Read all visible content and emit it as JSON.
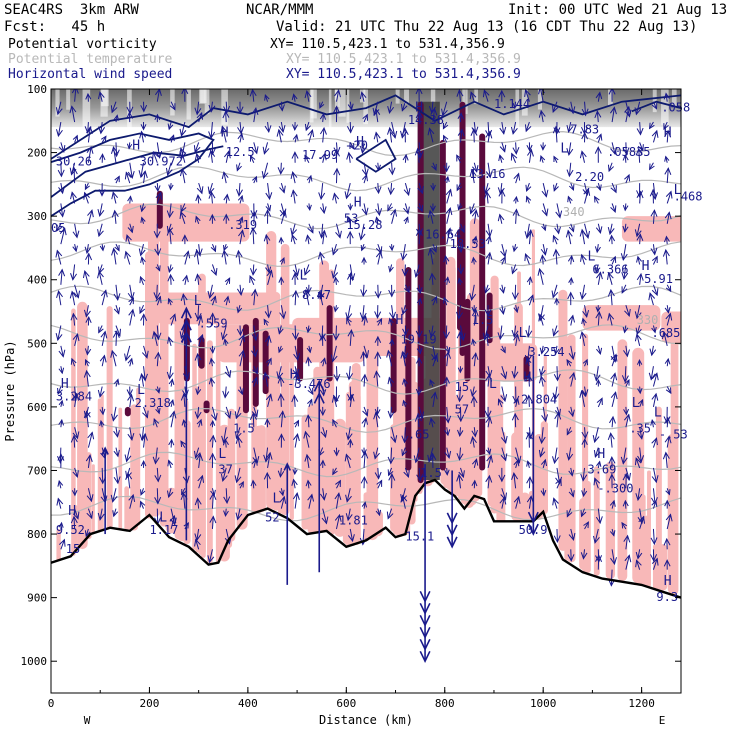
{
  "header": {
    "model": "SEAC4RS  3km ARW",
    "org": "NCAR/MMM",
    "init": "Init: 00 UTC Wed 21 Aug 13",
    "fcst": "Fcst:   45 h",
    "valid": "Valid: 21 UTC Thu 22 Aug 13 (16 CDT Thu 22 Aug 13)"
  },
  "legend": [
    {
      "label": "Potential vorticity",
      "xy": "XY= 110.5,423.1 to 531.4,356.9",
      "color": "#000000"
    },
    {
      "label": "Potential temperature",
      "xy": "XY= 110.5,423.1 to 531.4,356.9",
      "color": "#b8b8b8"
    },
    {
      "label": "Horizontal wind speed",
      "xy": "XY= 110.5,423.1 to 531.4,356.9",
      "color": "#1a1a8c"
    }
  ],
  "chart_data": {
    "type": "cross-section",
    "xlabel": "Distance (km)",
    "ylabel": "Pressure (hPa)",
    "xlim": [
      0,
      1280
    ],
    "ylim": [
      1050,
      100
    ],
    "x_ticks": [
      "0",
      "200",
      "400",
      "600",
      "800",
      "1000",
      "1200"
    ],
    "y_ticks": [
      "100",
      "200",
      "300",
      "400",
      "500",
      "600",
      "700",
      "800",
      "900",
      "1000"
    ],
    "endpoints": {
      "left": "W",
      "right": "E"
    },
    "colors": {
      "pv_positive": "#f8b8b8",
      "pv_high": "#5a0a3c",
      "terrain": "#000000",
      "theta": "#b8b8b8",
      "wind": "#1a1a8c"
    },
    "terrain": {
      "x": [
        0,
        40,
        80,
        120,
        160,
        200,
        240,
        280,
        320,
        340,
        360,
        400,
        440,
        480,
        520,
        560,
        600,
        640,
        680,
        700,
        720,
        740,
        760,
        780,
        800,
        820,
        840,
        860,
        880,
        900,
        940,
        980,
        1000,
        1020,
        1040,
        1080,
        1120,
        1160,
        1200,
        1240,
        1280
      ],
      "p": [
        845,
        835,
        800,
        790,
        795,
        770,
        805,
        820,
        848,
        845,
        810,
        770,
        760,
        775,
        800,
        795,
        820,
        810,
        790,
        805,
        800,
        740,
        720,
        715,
        730,
        740,
        760,
        740,
        745,
        780,
        780,
        780,
        765,
        810,
        840,
        860,
        870,
        875,
        880,
        890,
        900
      ]
    },
    "theta_labels": [
      {
        "x": 1040,
        "p": 300,
        "text": "340"
      },
      {
        "x": 1190,
        "p": 470,
        "text": "330"
      }
    ],
    "centers": [
      {
        "x": 165,
        "p": 195,
        "text": "H"
      },
      {
        "x": 345,
        "p": 175,
        "text": "H"
      },
      {
        "x": 620,
        "p": 190,
        "text": "H"
      },
      {
        "x": 740,
        "p": 135,
        "text": "H"
      },
      {
        "x": 1035,
        "p": 200,
        "text": "L"
      },
      {
        "x": 1245,
        "p": 175,
        "text": "H"
      },
      {
        "x": 615,
        "p": 285,
        "text": "H"
      },
      {
        "x": 1265,
        "p": 265,
        "text": "L"
      },
      {
        "x": 1090,
        "p": 370,
        "text": "L"
      },
      {
        "x": 1200,
        "p": 385,
        "text": "H"
      },
      {
        "x": 505,
        "p": 400,
        "text": "L"
      },
      {
        "x": 290,
        "p": 440,
        "text": "L"
      },
      {
        "x": 700,
        "p": 470,
        "text": "H"
      },
      {
        "x": 950,
        "p": 490,
        "text": "L"
      },
      {
        "x": 20,
        "p": 570,
        "text": "H"
      },
      {
        "x": 175,
        "p": 580,
        "text": "L"
      },
      {
        "x": 485,
        "p": 555,
        "text": "H"
      },
      {
        "x": 890,
        "p": 570,
        "text": "L"
      },
      {
        "x": 960,
        "p": 560,
        "text": "H"
      },
      {
        "x": 340,
        "p": 680,
        "text": "L"
      },
      {
        "x": 1180,
        "p": 600,
        "text": "L"
      },
      {
        "x": 1225,
        "p": 615,
        "text": "L"
      },
      {
        "x": 1110,
        "p": 680,
        "text": "H"
      },
      {
        "x": 35,
        "p": 770,
        "text": "H"
      },
      {
        "x": 220,
        "p": 780,
        "text": "L"
      },
      {
        "x": 450,
        "p": 750,
        "text": "L"
      },
      {
        "x": 1245,
        "p": 880,
        "text": "H"
      }
    ],
    "values": [
      {
        "x": 10,
        "p": 220,
        "text": "30.26"
      },
      {
        "x": 180,
        "p": 220,
        "text": "30.972"
      },
      {
        "x": 355,
        "p": 205,
        "text": "12.5"
      },
      {
        "x": 510,
        "p": 210,
        "text": "17.99"
      },
      {
        "x": 600,
        "p": 195,
        "text": "+20"
      },
      {
        "x": 725,
        "p": 155,
        "text": "14.38"
      },
      {
        "x": 900,
        "p": 130,
        "text": "1.144"
      },
      {
        "x": 1055,
        "p": 170,
        "text": "7.83"
      },
      {
        "x": 1240,
        "p": 135,
        "text": ".058"
      },
      {
        "x": 1130,
        "p": 205,
        "text": ".05835"
      },
      {
        "x": 1065,
        "p": 245,
        "text": "2.20"
      },
      {
        "x": 1265,
        "p": 275,
        "text": ".468"
      },
      {
        "x": 850,
        "p": 240,
        "text": "13.16"
      },
      {
        "x": 595,
        "p": 310,
        "text": "53"
      },
      {
        "x": 600,
        "p": 320,
        "text": "15.28"
      },
      {
        "x": 0,
        "p": 325,
        "text": "05"
      },
      {
        "x": 360,
        "p": 320,
        "text": ".319"
      },
      {
        "x": 760,
        "p": 335,
        "text": "16.64"
      },
      {
        "x": 810,
        "p": 350,
        "text": "18.53"
      },
      {
        "x": 1100,
        "p": 390,
        "text": "6.366"
      },
      {
        "x": 1205,
        "p": 405,
        "text": "5.91"
      },
      {
        "x": 510,
        "p": 430,
        "text": "8.47"
      },
      {
        "x": 300,
        "p": 475,
        "text": ".559"
      },
      {
        "x": 855,
        "p": 470,
        "text": "1.5"
      },
      {
        "x": 1220,
        "p": 490,
        "text": ".685"
      },
      {
        "x": 710,
        "p": 500,
        "text": "19.19"
      },
      {
        "x": 970,
        "p": 520,
        "text": "3.254"
      },
      {
        "x": 10,
        "p": 590,
        "text": "3.284"
      },
      {
        "x": 170,
        "p": 600,
        "text": "2.318"
      },
      {
        "x": 480,
        "p": 570,
        "text": "-3.476"
      },
      {
        "x": 820,
        "p": 575,
        "text": "15"
      },
      {
        "x": 820,
        "p": 610,
        "text": "57"
      },
      {
        "x": 955,
        "p": 595,
        "text": "2.804"
      },
      {
        "x": 370,
        "p": 640,
        "text": "1.5"
      },
      {
        "x": 725,
        "p": 650,
        "text": ".65"
      },
      {
        "x": 1175,
        "p": 640,
        "text": ".35"
      },
      {
        "x": 1235,
        "p": 650,
        "text": "-.53"
      },
      {
        "x": 340,
        "p": 705,
        "text": "37"
      },
      {
        "x": 1090,
        "p": 705,
        "text": "3.69"
      },
      {
        "x": 1110,
        "p": 735,
        "text": "-.300"
      },
      {
        "x": 750,
        "p": 710,
        "text": "1.5"
      },
      {
        "x": 435,
        "p": 780,
        "text": "52"
      },
      {
        "x": 585,
        "p": 785,
        "text": "1.81"
      },
      {
        "x": 200,
        "p": 800,
        "text": "1.17"
      },
      {
        "x": 10,
        "p": 800,
        "text": "9.52"
      },
      {
        "x": 30,
        "p": 830,
        "text": "15"
      },
      {
        "x": 720,
        "p": 810,
        "text": "15.1"
      },
      {
        "x": 950,
        "p": 800,
        "text": "50.9"
      },
      {
        "x": 1230,
        "p": 905,
        "text": "9.3"
      }
    ],
    "big_arrows": [
      {
        "x": 110,
        "p_from": 800,
        "p_to": 665,
        "heads": 1
      },
      {
        "x": 275,
        "p_from": 810,
        "p_to": 445,
        "heads": 3
      },
      {
        "x": 480,
        "p_from": 880,
        "p_to": 690,
        "heads": 1
      },
      {
        "x": 545,
        "p_from": 860,
        "p_to": 560,
        "heads": 2
      },
      {
        "x": 760,
        "p_from": 690,
        "p_to": 1000,
        "heads": 6
      },
      {
        "x": 815,
        "p_from": 700,
        "p_to": 820,
        "heads": 3
      },
      {
        "x": 980,
        "p_from": 520,
        "p_to": 800,
        "heads": 2
      }
    ]
  }
}
